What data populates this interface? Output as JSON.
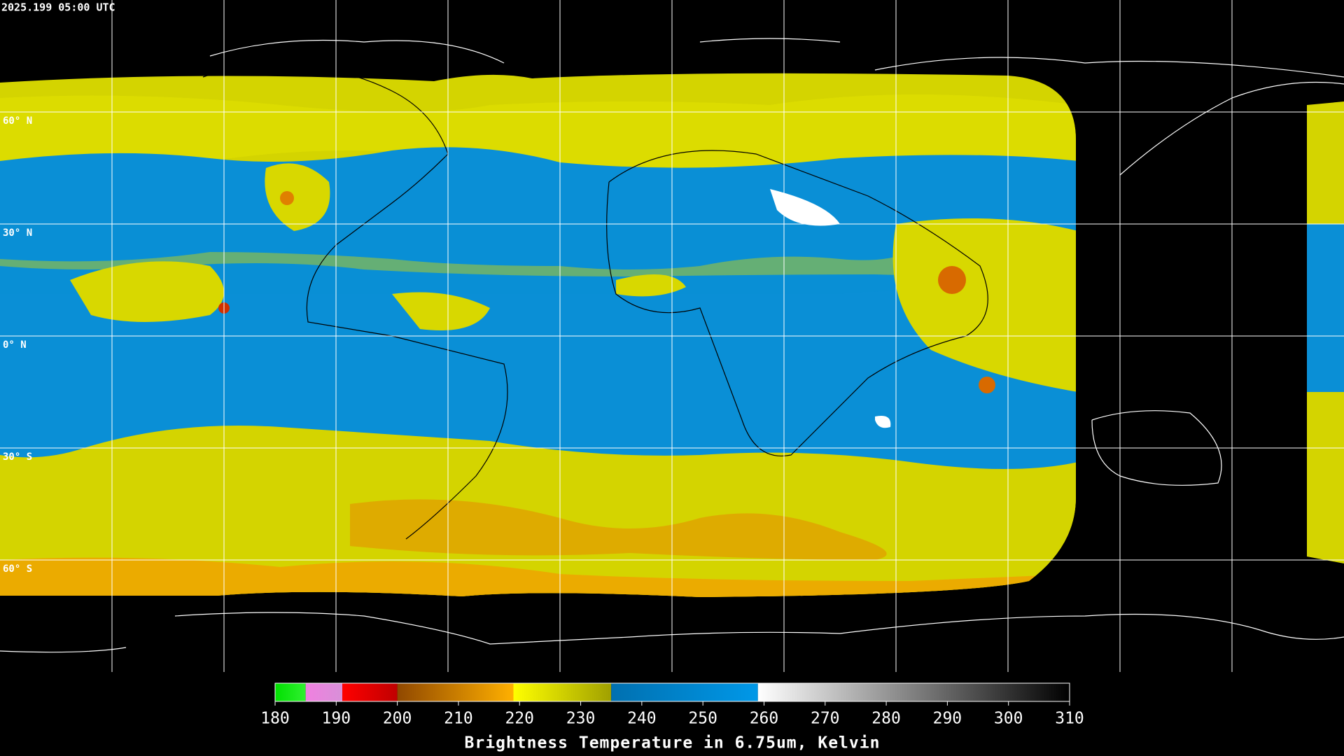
{
  "timestamp": "2025.199 05:00 UTC",
  "latitude_labels": [
    "60° N",
    "30° N",
    "0° N",
    "30° S",
    "60° S"
  ],
  "colorbar": {
    "title": "Brightness Temperature in 6.75um, Kelvin",
    "lim": [
      180,
      310
    ],
    "ticks": [
      180,
      190,
      200,
      210,
      220,
      230,
      240,
      250,
      260,
      270,
      280,
      290,
      300,
      310
    ],
    "segments": [
      {
        "from": 180,
        "to": 185,
        "colors": [
          "#00e000",
          "#30f030"
        ]
      },
      {
        "from": 185,
        "to": 191,
        "colors": [
          "#f080e0",
          "#d890d8"
        ]
      },
      {
        "from": 191,
        "to": 200,
        "colors": [
          "#ff0000",
          "#c00000"
        ]
      },
      {
        "from": 200,
        "to": 219,
        "colors": [
          "#904800",
          "#ffb000"
        ]
      },
      {
        "from": 219,
        "to": 235,
        "colors": [
          "#ffff00",
          "#a0a000"
        ]
      },
      {
        "from": 235,
        "to": 259,
        "colors": [
          "#0070b0",
          "#0098e8"
        ]
      },
      {
        "from": 259,
        "to": 310,
        "colors": [
          "#ffffff",
          "#000000"
        ]
      }
    ]
  }
}
